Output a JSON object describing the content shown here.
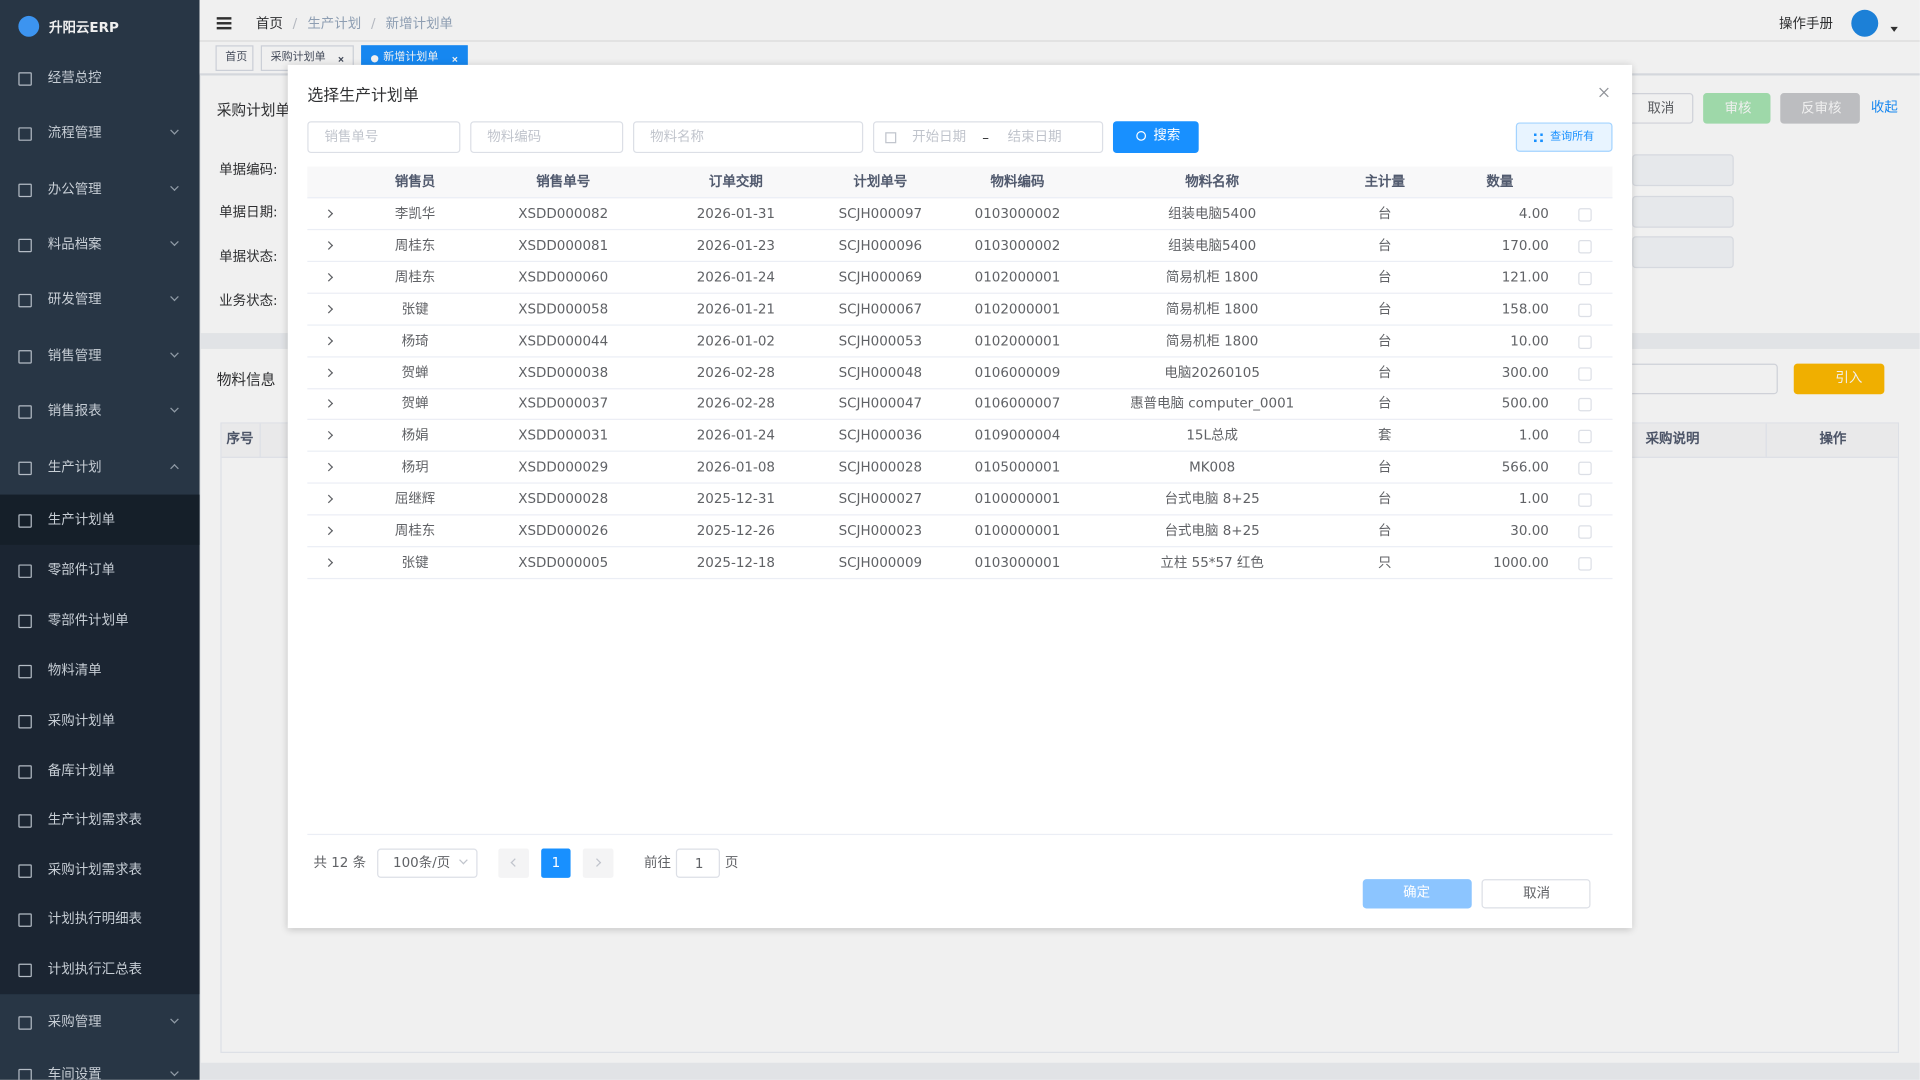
{
  "sidebar": {
    "brand": "升阳云ERP",
    "menu": [
      "经营总控",
      "流程管理",
      "办公管理",
      "料品档案",
      "研发管理",
      "销售管理",
      "销售报表",
      "生产计划",
      "生产计划单",
      "零部件订单",
      "零部件计划单",
      "物料清单",
      "采购计划单",
      "备库计划单",
      "生产计划需求表",
      "采购计划需求表",
      "计划执行明细表",
      "计划执行汇总表",
      "采购管理",
      "车间设置"
    ]
  },
  "header": {
    "breadcrumb": [
      "首页",
      "生产计划",
      "新增计划单"
    ],
    "breadcrumb_separator": "/",
    "manual": "操作手册"
  },
  "tabs": [
    "首页",
    "采购计划单",
    "新增计划单"
  ],
  "form": {
    "title": "采购计划单",
    "buttons": [
      "取消",
      "审核",
      "反审核",
      "收起"
    ],
    "fields": [
      "单据编码:",
      "单据日期:",
      "单据状态:",
      "业务状态:"
    ]
  },
  "materials": {
    "title": "物料信息",
    "import": "引入",
    "columns": [
      "序号",
      "采购说明",
      "操作"
    ]
  },
  "dialog": {
    "title": "选择生产计划单",
    "filters": [
      "销售单号",
      "物料编码",
      "物料名称"
    ],
    "date_start": "开始日期",
    "date_separator": "–",
    "date_end": "结束日期",
    "search": "搜索",
    "query_all": "查询所有",
    "columns": [
      "销售员",
      "销售单号",
      "订单交期",
      "计划单号",
      "物料编码",
      "物料名称",
      "主计量",
      "数量"
    ],
    "rows": [
      [
        "李凯华",
        "XSDD000082",
        "2026-01-31",
        "SCJH000097",
        "0103000002",
        "组装电脑5400",
        "台",
        "4.00"
      ],
      [
        "周桂东",
        "XSDD000081",
        "2026-01-23",
        "SCJH000096",
        "0103000002",
        "组装电脑5400",
        "台",
        "170.00"
      ],
      [
        "周桂东",
        "XSDD000060",
        "2026-01-24",
        "SCJH000069",
        "0102000001",
        "简易机柜 1800",
        "台",
        "121.00"
      ],
      [
        "张键",
        "XSDD000058",
        "2026-01-21",
        "SCJH000067",
        "0102000001",
        "简易机柜 1800",
        "台",
        "158.00"
      ],
      [
        "杨琦",
        "XSDD000044",
        "2026-01-02",
        "SCJH000053",
        "0102000001",
        "简易机柜 1800",
        "台",
        "10.00"
      ],
      [
        "贺蝉",
        "XSDD000038",
        "2026-02-28",
        "SCJH000048",
        "0106000009",
        "电脑20260105",
        "台",
        "300.00"
      ],
      [
        "贺蝉",
        "XSDD000037",
        "2026-02-28",
        "SCJH000047",
        "0106000007",
        "惠普电脑 computer_0001",
        "台",
        "500.00"
      ],
      [
        "杨娟",
        "XSDD000031",
        "2026-01-24",
        "SCJH000036",
        "0109000004",
        "15L总成",
        "套",
        "1.00"
      ],
      [
        "杨玥",
        "XSDD000029",
        "2026-01-08",
        "SCJH000028",
        "0105000001",
        "MK008",
        "台",
        "566.00"
      ],
      [
        "屈继辉",
        "XSDD000028",
        "2025-12-31",
        "SCJH000027",
        "0100000001",
        "台式电脑 8+25",
        "台",
        "1.00"
      ],
      [
        "周桂东",
        "XSDD000026",
        "2025-12-26",
        "SCJH000023",
        "0100000001",
        "台式电脑 8+25",
        "台",
        "30.00"
      ],
      [
        "张键",
        "XSDD000005",
        "2025-12-18",
        "SCJH000009",
        "0103000001",
        "立柱 55*57 红色",
        "只",
        "1000.00"
      ]
    ],
    "pagination": {
      "total": "共 12 条",
      "page_size": "100条/页",
      "current": "1",
      "goto": "前往",
      "goto_value": "1",
      "page_unit": "页"
    },
    "confirm": "确定",
    "cancel": "取消"
  }
}
